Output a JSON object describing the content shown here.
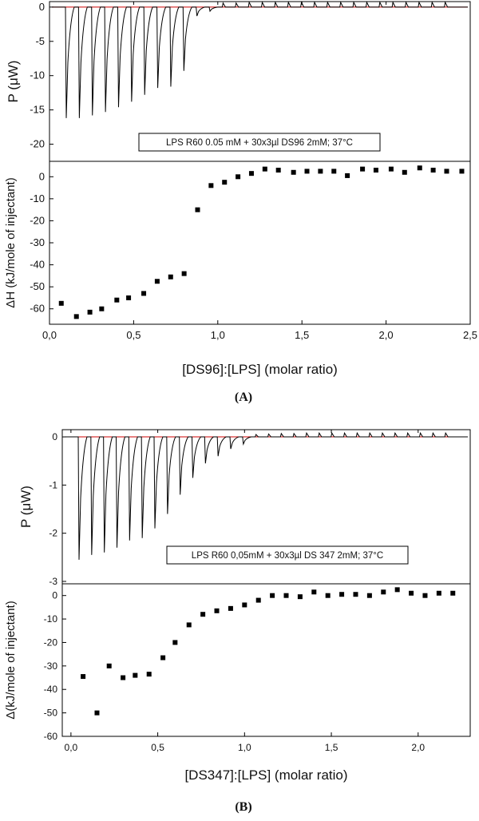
{
  "chart_data": [
    {
      "panel": "A",
      "type": "line",
      "upper": {
        "ylabel": "P (μW)",
        "ylim": [
          -22.5,
          0.8
        ],
        "yticks": [
          0,
          -5,
          -10,
          -15,
          -20
        ],
        "annotation": "LPS R60 0.05 mM + 30x3µl DS96 2mM; 37°C",
        "baseline_color": "#cc0000",
        "trace_color": "#000000",
        "peak_depths": [
          -16.2,
          -16.2,
          -15.8,
          -15.3,
          -14.6,
          -13.8,
          -12.8,
          -11.8,
          -11.6,
          -9.3,
          -1.3,
          -0.6,
          0.6,
          0.6,
          0.7,
          0.7,
          0.7,
          0.7,
          0.7,
          0.7,
          0.7,
          0.7,
          0.7,
          0.7,
          0.7,
          0.7,
          0.7,
          0.7,
          0.7,
          0.7
        ]
      },
      "lower": {
        "type": "scatter",
        "xlabel": "[DS96]:[LPS] (molar ratio)",
        "ylabel": "ΔH (kJ/mole of injectant)",
        "xlim": [
          0,
          2.5
        ],
        "ylim": [
          -67,
          7
        ],
        "xticks": [
          0,
          0.5,
          1.0,
          1.5,
          2.0,
          2.5
        ],
        "xtick_labels": [
          "0,0",
          "0,5",
          "1,0",
          "1,5",
          "2,0",
          "2,5"
        ],
        "yticks": [
          0,
          -10,
          -20,
          -30,
          -40,
          -50,
          -60
        ],
        "x": [
          0.07,
          0.16,
          0.24,
          0.31,
          0.4,
          0.47,
          0.56,
          0.64,
          0.72,
          0.8,
          0.88,
          0.96,
          1.04,
          1.12,
          1.2,
          1.28,
          1.36,
          1.45,
          1.53,
          1.61,
          1.69,
          1.77,
          1.86,
          1.94,
          2.03,
          2.11,
          2.2,
          2.28,
          2.36,
          2.45
        ],
        "y": [
          -57.5,
          -63.5,
          -61.5,
          -60,
          -56,
          -55,
          -53,
          -47.5,
          -45.5,
          -44,
          -15,
          -4,
          -2.5,
          0,
          1.5,
          3.5,
          3,
          2,
          2.5,
          2.5,
          2.5,
          0.5,
          3.5,
          3,
          3.5,
          2,
          4,
          3,
          2.5,
          2.5
        ]
      },
      "caption": "(A)"
    },
    {
      "panel": "B",
      "type": "line",
      "upper": {
        "ylabel": "P (μW)",
        "ylim": [
          -3.05,
          0.15
        ],
        "yticks": [
          0,
          -1,
          -2,
          -3
        ],
        "annotation": "LPS R60 0,05mM + 30x3µl DS 347 2mM; 37°C",
        "baseline_color": "#cc0000",
        "trace_color": "#000000",
        "peak_depths": [
          -2.55,
          -2.45,
          -2.4,
          -2.3,
          -2.15,
          -2.1,
          -1.9,
          -1.6,
          -1.2,
          -0.85,
          -0.55,
          -0.4,
          -0.25,
          -0.15,
          0.05,
          0.06,
          0.07,
          0.07,
          0.08,
          0.08,
          0.08,
          0.08,
          0.08,
          0.08,
          0.08,
          0.08,
          0.08,
          0.08,
          0.08,
          0.08
        ]
      },
      "lower": {
        "type": "scatter",
        "xlabel": "[DS347]:[LPS] (molar ratio)",
        "ylabel": "Δ(kJ/mole of injectant)",
        "xlim": [
          -0.05,
          2.3
        ],
        "ylim": [
          -60,
          5
        ],
        "xticks": [
          0,
          0.5,
          1.0,
          1.5,
          2.0
        ],
        "xtick_labels": [
          "0,0",
          "0,5",
          "1,0",
          "1,5",
          "2,0"
        ],
        "yticks": [
          0,
          -10,
          -20,
          -30,
          -40,
          -50,
          -60
        ],
        "x": [
          0.07,
          0.15,
          0.22,
          0.3,
          0.37,
          0.45,
          0.53,
          0.6,
          0.68,
          0.76,
          0.84,
          0.92,
          1.0,
          1.08,
          1.16,
          1.24,
          1.32,
          1.4,
          1.48,
          1.56,
          1.64,
          1.72,
          1.8,
          1.88,
          1.96,
          2.04,
          2.12,
          2.2
        ],
        "y": [
          -34.5,
          -50,
          -30,
          -35,
          -34,
          -33.5,
          -26.5,
          -20,
          -12.5,
          -8,
          -6.5,
          -5.5,
          -4,
          -2,
          0,
          0,
          -0.5,
          1.5,
          0,
          0.5,
          0.5,
          0,
          1.5,
          2.5,
          1,
          0,
          1,
          1
        ]
      },
      "caption": "(B)"
    }
  ]
}
